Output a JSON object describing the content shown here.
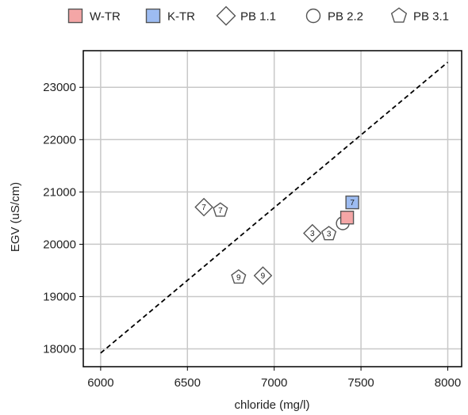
{
  "chart_data": {
    "type": "scatter",
    "xlabel": "chloride (mg/l)",
    "ylabel": "EGV (uS/cm)",
    "xlim": [
      5900,
      8080
    ],
    "ylim": [
      17660,
      23700
    ],
    "x_ticks": [
      "6000",
      "6500",
      "7000",
      "7500",
      "8000"
    ],
    "y_ticks": [
      "18000",
      "19000",
      "20000",
      "21000",
      "22000",
      "23000"
    ],
    "grid": true,
    "legend_position": "top",
    "reference_line": {
      "style": "dashed",
      "x": [
        6000,
        8000
      ],
      "y": [
        17920,
        23480
      ]
    },
    "series": [
      {
        "name": "W-TR",
        "marker": "square",
        "color": "#f4a6a6",
        "points": [
          {
            "x": 7420,
            "y": 20510,
            "label": ""
          }
        ]
      },
      {
        "name": "K-TR",
        "marker": "square",
        "color": "#9dbcf2",
        "points": [
          {
            "x": 7450,
            "y": 20800,
            "label": "7"
          }
        ]
      },
      {
        "name": "PB 1.1",
        "marker": "diamond",
        "color": "#ffffff",
        "points": [
          {
            "x": 6595,
            "y": 20710,
            "label": "7"
          },
          {
            "x": 7220,
            "y": 20210,
            "label": "3"
          },
          {
            "x": 6935,
            "y": 19400,
            "label": "9"
          }
        ]
      },
      {
        "name": "PB 2.2",
        "marker": "circle",
        "color": "#ffffff",
        "points": [
          {
            "x": 7395,
            "y": 20400,
            "label": ""
          }
        ]
      },
      {
        "name": "PB 3.1",
        "marker": "pentagon",
        "color": "#ffffff",
        "points": [
          {
            "x": 6690,
            "y": 20650,
            "label": "7"
          },
          {
            "x": 7315,
            "y": 20200,
            "label": "3"
          },
          {
            "x": 6795,
            "y": 19370,
            "label": "9"
          }
        ]
      }
    ]
  }
}
